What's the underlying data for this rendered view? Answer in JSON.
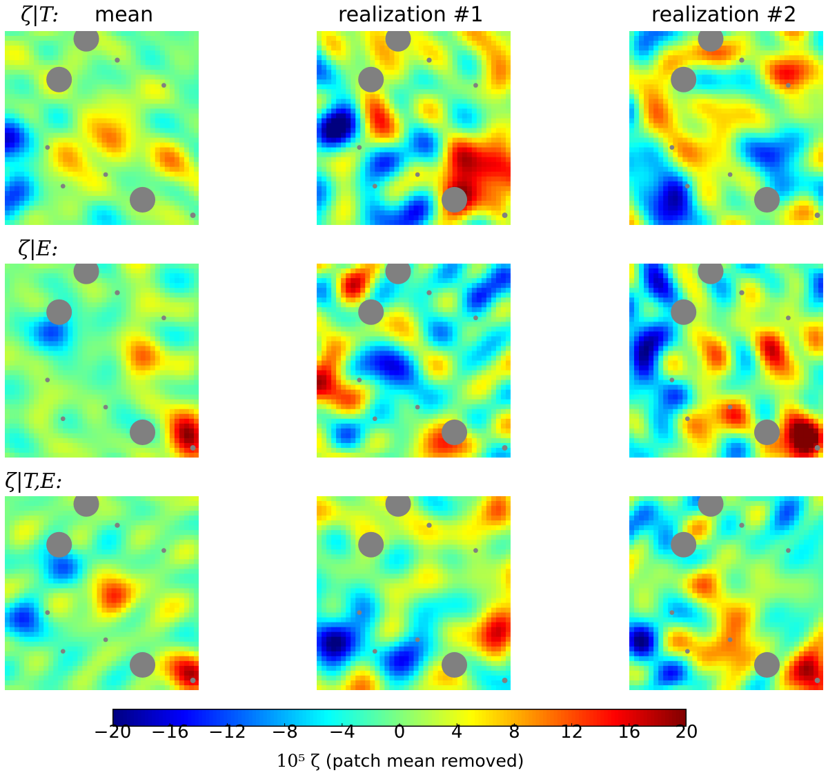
{
  "columns": [
    {
      "label": "mean"
    },
    {
      "label": "realization #1"
    },
    {
      "label": "realization #2"
    }
  ],
  "rows": [
    {
      "label": "ζ|T:"
    },
    {
      "label": "ζ|E:"
    },
    {
      "label": "ζ|T,E:"
    }
  ],
  "colormap": {
    "name": "jet",
    "stops": [
      "#00007f",
      "#0000ff",
      "#007fff",
      "#00ffff",
      "#7fff7f",
      "#ffff00",
      "#ff7f00",
      "#ff0000",
      "#7f0000"
    ]
  },
  "mask_color": "#808080",
  "chart_data": {
    "type": "heatmap",
    "description_rows": [
      "ζ|T:",
      "ζ|E:",
      "ζ|T,E:"
    ],
    "description_cols": [
      "mean",
      "realization #1",
      "realization #2"
    ],
    "color_range": [
      -20,
      20
    ],
    "colorbar": {
      "ticks": [
        -20,
        -16,
        -12,
        -8,
        -4,
        0,
        4,
        8,
        12,
        16,
        20
      ],
      "tick_labels": [
        "−20",
        "−16",
        "−12",
        "−8",
        "−4",
        "0",
        "4",
        "8",
        "12",
        "16",
        "20"
      ],
      "label_math": "10⁵ ζ",
      "label_text": "(patch mean removed)"
    },
    "panels": [
      {
        "row": 0,
        "col": 0,
        "amplitude": 0.45,
        "seed": 11,
        "features": [
          {
            "u": 0.02,
            "v": 0.55,
            "val": -14
          },
          {
            "u": 0.05,
            "v": 0.85,
            "val": -12
          },
          {
            "u": 0.55,
            "v": 0.55,
            "val": 8
          },
          {
            "u": 0.85,
            "v": 0.7,
            "val": 8
          },
          {
            "u": 0.35,
            "v": 0.7,
            "val": 6
          }
        ]
      },
      {
        "row": 0,
        "col": 1,
        "amplitude": 1.0,
        "seed": 23,
        "features": [
          {
            "u": 0.9,
            "v": 0.7,
            "val": 22
          },
          {
            "u": 0.75,
            "v": 0.85,
            "val": 18
          },
          {
            "u": 0.3,
            "v": 0.4,
            "val": 14
          },
          {
            "u": 0.3,
            "v": 0.1,
            "val": 12
          },
          {
            "u": 0.1,
            "v": 0.5,
            "val": -16
          },
          {
            "u": 0.42,
            "v": 0.65,
            "val": -15
          },
          {
            "u": 0.5,
            "v": 0.95,
            "val": -16
          }
        ]
      },
      {
        "row": 0,
        "col": 2,
        "amplitude": 1.0,
        "seed": 37,
        "features": [
          {
            "u": 0.05,
            "v": 0.05,
            "val": -15
          },
          {
            "u": 0.35,
            "v": 0.15,
            "val": 14
          },
          {
            "u": 0.5,
            "v": 0.5,
            "val": 14
          },
          {
            "u": 0.25,
            "v": 0.85,
            "val": -16
          },
          {
            "u": 0.75,
            "v": 0.65,
            "val": -14
          },
          {
            "u": 0.85,
            "v": 0.2,
            "val": 12
          }
        ]
      },
      {
        "row": 1,
        "col": 0,
        "amplitude": 0.45,
        "seed": 41,
        "features": [
          {
            "u": 0.95,
            "v": 0.9,
            "val": 18
          },
          {
            "u": 0.25,
            "v": 0.35,
            "val": -12
          },
          {
            "u": 0.7,
            "v": 0.5,
            "val": 8
          }
        ]
      },
      {
        "row": 1,
        "col": 1,
        "amplitude": 1.0,
        "seed": 53,
        "features": [
          {
            "u": 0.65,
            "v": 0.95,
            "val": 18
          },
          {
            "u": 0.05,
            "v": 0.65,
            "val": 16
          },
          {
            "u": 0.35,
            "v": 0.55,
            "val": -16
          },
          {
            "u": 0.85,
            "v": 0.15,
            "val": -14
          },
          {
            "u": 0.2,
            "v": 0.1,
            "val": 12
          }
        ]
      },
      {
        "row": 1,
        "col": 2,
        "amplitude": 1.0,
        "seed": 67,
        "features": [
          {
            "u": 0.15,
            "v": 0.15,
            "val": -22
          },
          {
            "u": 0.1,
            "v": 0.4,
            "val": -18
          },
          {
            "u": 0.75,
            "v": 0.4,
            "val": 18
          },
          {
            "u": 0.9,
            "v": 0.9,
            "val": 22
          },
          {
            "u": 0.4,
            "v": 0.8,
            "val": 14
          },
          {
            "u": 0.25,
            "v": 0.7,
            "val": -14
          }
        ]
      },
      {
        "row": 2,
        "col": 0,
        "amplitude": 0.5,
        "seed": 79,
        "features": [
          {
            "u": 0.95,
            "v": 0.9,
            "val": 18
          },
          {
            "u": 0.1,
            "v": 0.65,
            "val": -14
          },
          {
            "u": 0.55,
            "v": 0.5,
            "val": 12
          },
          {
            "u": 0.3,
            "v": 0.35,
            "val": -10
          }
        ]
      },
      {
        "row": 2,
        "col": 1,
        "amplitude": 0.9,
        "seed": 89,
        "features": [
          {
            "u": 0.95,
            "v": 0.05,
            "val": 16
          },
          {
            "u": 0.95,
            "v": 0.7,
            "val": 14
          },
          {
            "u": 0.1,
            "v": 0.75,
            "val": -16
          },
          {
            "u": 0.45,
            "v": 0.8,
            "val": -14
          },
          {
            "u": 0.4,
            "v": 0.2,
            "val": 10
          }
        ]
      },
      {
        "row": 2,
        "col": 2,
        "amplitude": 1.0,
        "seed": 97,
        "features": [
          {
            "u": 0.95,
            "v": 0.9,
            "val": 20
          },
          {
            "u": 0.55,
            "v": 0.8,
            "val": 16
          },
          {
            "u": 0.05,
            "v": 0.75,
            "val": -18
          },
          {
            "u": 0.8,
            "v": 0.15,
            "val": -14
          },
          {
            "u": 0.4,
            "v": 0.45,
            "val": 12
          },
          {
            "u": 0.2,
            "v": 0.25,
            "val": -12
          }
        ]
      }
    ],
    "masks": [
      {
        "u": 0.42,
        "v": 0.04,
        "r": 0.066
      },
      {
        "u": 0.28,
        "v": 0.25,
        "r": 0.066
      },
      {
        "u": 0.71,
        "v": 0.87,
        "r": 0.066
      },
      {
        "u": 0.58,
        "v": 0.15,
        "r": 0.013
      },
      {
        "u": 0.22,
        "v": 0.6,
        "r": 0.012
      },
      {
        "u": 0.82,
        "v": 0.28,
        "r": 0.012
      },
      {
        "u": 0.52,
        "v": 0.74,
        "r": 0.012
      },
      {
        "u": 0.3,
        "v": 0.8,
        "r": 0.012
      },
      {
        "u": 0.97,
        "v": 0.95,
        "r": 0.014
      }
    ]
  }
}
